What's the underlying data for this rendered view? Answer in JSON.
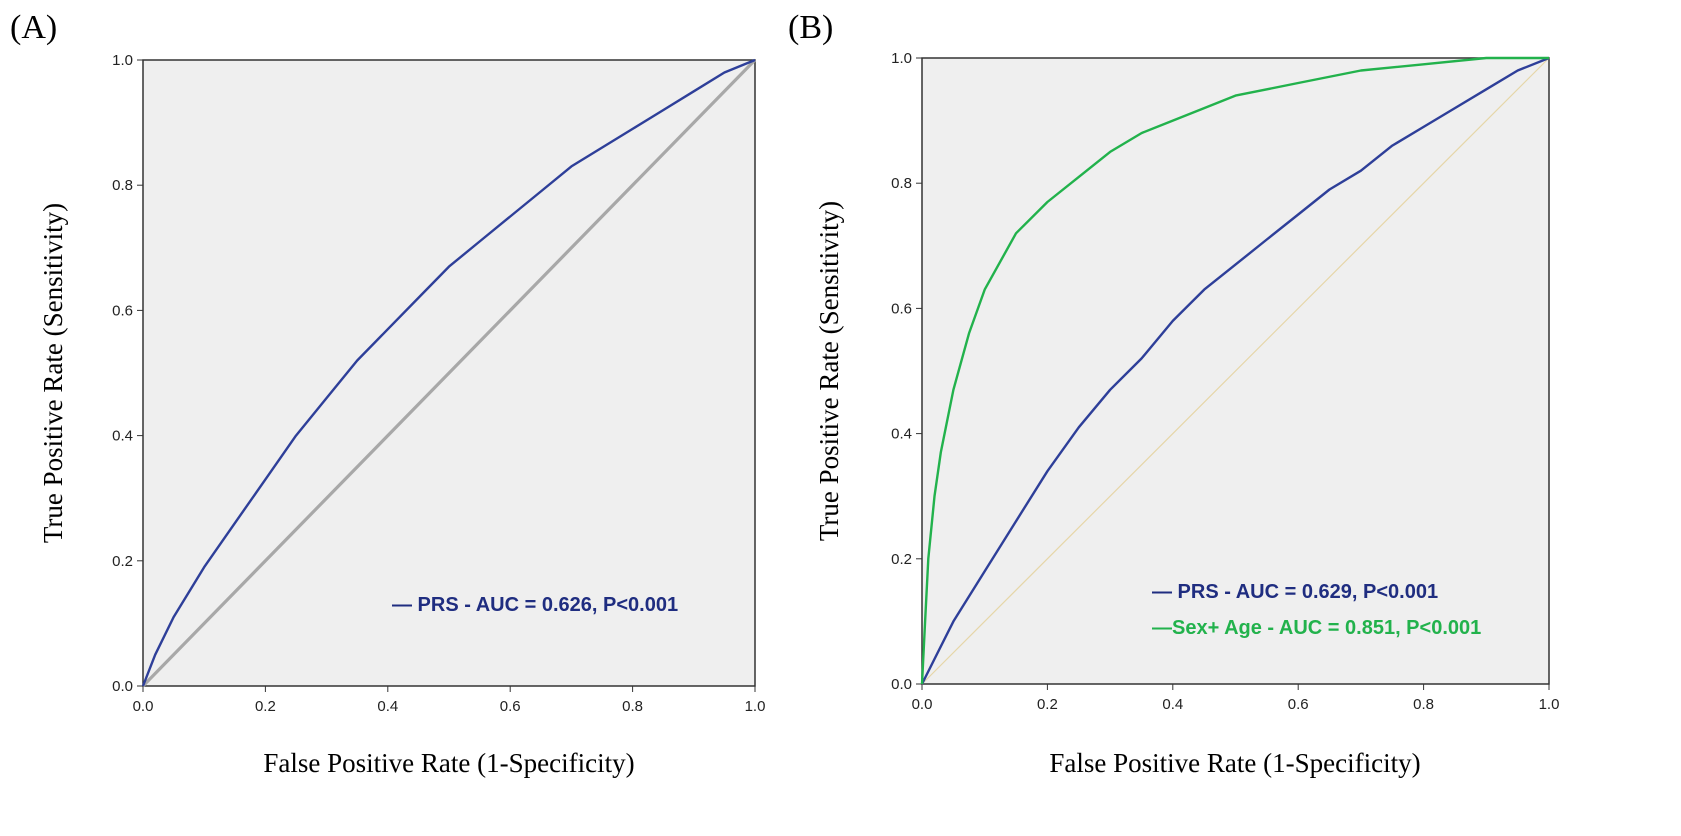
{
  "chart_data": [
    {
      "type": "line",
      "panel_label": "(A)",
      "xlabel": "False Positive Rate (1-Specificity)",
      "ylabel": "True Positive Rate (Sensitivity)",
      "xlim": [
        0,
        1
      ],
      "ylim": [
        0,
        1
      ],
      "x_ticks": [
        "0.0",
        "0.2",
        "0.4",
        "0.6",
        "0.8",
        "1.0"
      ],
      "y_ticks": [
        "0.0",
        "0.2",
        "0.4",
        "0.6",
        "0.8",
        "1.0"
      ],
      "grid": false,
      "legend_position": "bottom-right",
      "reference_line": {
        "color": "#a8a8a8",
        "points": [
          [
            0,
            0
          ],
          [
            1,
            1
          ]
        ]
      },
      "series": [
        {
          "legend": "— PRS - AUC = 0.626, P<0.001",
          "color": "#2e3f99",
          "points": [
            [
              0,
              0
            ],
            [
              0.02,
              0.05
            ],
            [
              0.05,
              0.11
            ],
            [
              0.1,
              0.19
            ],
            [
              0.15,
              0.26
            ],
            [
              0.2,
              0.33
            ],
            [
              0.25,
              0.4
            ],
            [
              0.3,
              0.46
            ],
            [
              0.35,
              0.52
            ],
            [
              0.4,
              0.57
            ],
            [
              0.45,
              0.62
            ],
            [
              0.5,
              0.67
            ],
            [
              0.55,
              0.71
            ],
            [
              0.6,
              0.75
            ],
            [
              0.65,
              0.79
            ],
            [
              0.7,
              0.83
            ],
            [
              0.75,
              0.86
            ],
            [
              0.8,
              0.89
            ],
            [
              0.85,
              0.92
            ],
            [
              0.9,
              0.95
            ],
            [
              0.95,
              0.98
            ],
            [
              1,
              1
            ]
          ]
        }
      ]
    },
    {
      "type": "line",
      "panel_label": "(B)",
      "xlabel": "False Positive Rate (1-Specificity)",
      "ylabel": "True Positive Rate (Sensitivity)",
      "xlim": [
        0,
        1
      ],
      "ylim": [
        0,
        1
      ],
      "x_ticks": [
        "0.0",
        "0.2",
        "0.4",
        "0.6",
        "0.8",
        "1.0"
      ],
      "y_ticks": [
        "0.0",
        "0.2",
        "0.4",
        "0.6",
        "0.8",
        "1.0"
      ],
      "grid": false,
      "legend_position": "bottom-right",
      "reference_line": {
        "color": "#e6d6a8",
        "points": [
          [
            0,
            0
          ],
          [
            1,
            1
          ]
        ]
      },
      "series": [
        {
          "legend": "— PRS - AUC = 0.629, P<0.001",
          "color": "#2e3f99",
          "points": [
            [
              0,
              0
            ],
            [
              0.02,
              0.04
            ],
            [
              0.05,
              0.1
            ],
            [
              0.1,
              0.18
            ],
            [
              0.15,
              0.26
            ],
            [
              0.2,
              0.34
            ],
            [
              0.25,
              0.41
            ],
            [
              0.3,
              0.47
            ],
            [
              0.35,
              0.52
            ],
            [
              0.4,
              0.58
            ],
            [
              0.45,
              0.63
            ],
            [
              0.5,
              0.67
            ],
            [
              0.55,
              0.71
            ],
            [
              0.6,
              0.75
            ],
            [
              0.65,
              0.79
            ],
            [
              0.7,
              0.82
            ],
            [
              0.75,
              0.86
            ],
            [
              0.8,
              0.89
            ],
            [
              0.85,
              0.92
            ],
            [
              0.9,
              0.95
            ],
            [
              0.95,
              0.98
            ],
            [
              1,
              1
            ]
          ]
        },
        {
          "legend": "—Sex+ Age - AUC = 0.851, P<0.001",
          "color": "#22b24c",
          "points": [
            [
              0,
              0
            ],
            [
              0.005,
              0.1
            ],
            [
              0.01,
              0.2
            ],
            [
              0.02,
              0.3
            ],
            [
              0.03,
              0.37
            ],
            [
              0.05,
              0.47
            ],
            [
              0.075,
              0.56
            ],
            [
              0.1,
              0.63
            ],
            [
              0.15,
              0.72
            ],
            [
              0.2,
              0.77
            ],
            [
              0.25,
              0.81
            ],
            [
              0.3,
              0.85
            ],
            [
              0.35,
              0.88
            ],
            [
              0.4,
              0.9
            ],
            [
              0.45,
              0.92
            ],
            [
              0.5,
              0.94
            ],
            [
              0.6,
              0.96
            ],
            [
              0.7,
              0.98
            ],
            [
              0.8,
              0.99
            ],
            [
              0.9,
              1
            ],
            [
              1,
              1
            ]
          ]
        }
      ]
    }
  ]
}
